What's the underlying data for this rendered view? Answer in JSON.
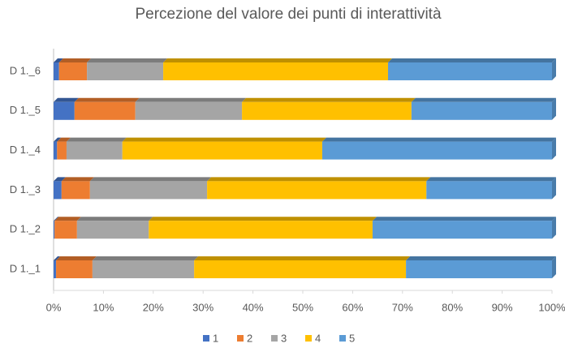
{
  "chart_data": {
    "type": "stacked_bar_horizontal",
    "title": "Percezione del valore dei punti di interattività",
    "categories": [
      "D 1._1",
      "D 1._2",
      "D 1._3",
      "D 1._4",
      "D 1._5",
      "D 1._6"
    ],
    "series": [
      {
        "name": "1",
        "color": "#4472c4",
        "values": [
          0.5,
          0.2,
          1.6,
          0.7,
          4.2,
          1.1
        ]
      },
      {
        "name": "2",
        "color": "#ed7d31",
        "values": [
          7.3,
          4.5,
          5.7,
          1.9,
          12.2,
          5.6
        ]
      },
      {
        "name": "3",
        "color": "#a5a5a5",
        "values": [
          20.4,
          14.4,
          23.5,
          11.2,
          21.4,
          15.3
        ]
      },
      {
        "name": "4",
        "color": "#ffc000",
        "values": [
          42.5,
          44.9,
          44.0,
          40.1,
          34.0,
          45.1
        ]
      },
      {
        "name": "5",
        "color": "#5b9bd5",
        "values": [
          29.3,
          36.0,
          25.2,
          46.1,
          28.2,
          32.9
        ]
      }
    ],
    "xlim": [
      0,
      100
    ],
    "xticks": [
      {
        "value": 0,
        "label": "0%"
      },
      {
        "value": 10,
        "label": "10%"
      },
      {
        "value": 20,
        "label": "20%"
      },
      {
        "value": 30,
        "label": "30%"
      },
      {
        "value": 40,
        "label": "40%"
      },
      {
        "value": 50,
        "label": "50%"
      },
      {
        "value": 60,
        "label": "60%"
      },
      {
        "value": 70,
        "label": "70%"
      },
      {
        "value": 80,
        "label": "80%"
      },
      {
        "value": 90,
        "label": "90%"
      },
      {
        "value": 100,
        "label": "100%"
      }
    ],
    "legend": "bottom"
  }
}
